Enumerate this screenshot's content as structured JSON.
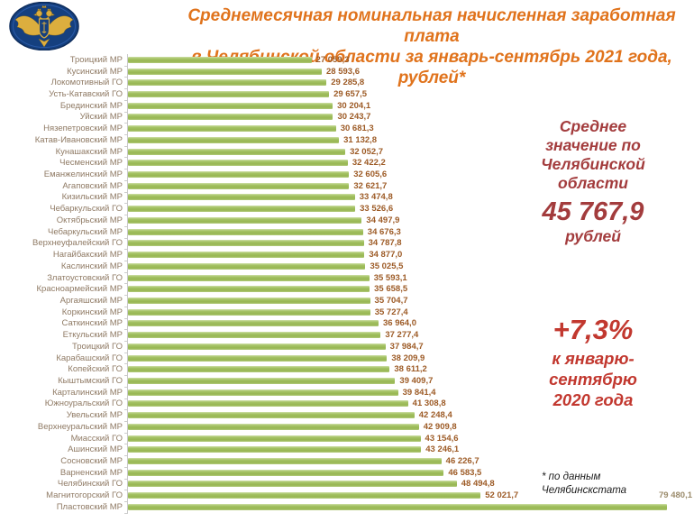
{
  "header": {
    "title_line1": "Среднемесячная номинальная начисленная заработная плата",
    "title_line2": "в Челябинской области за январь-сентябрь 2021 года, рублей*",
    "title_color": "#e0731c",
    "logo": "rosstat-emblem"
  },
  "chart_data": {
    "type": "bar",
    "orientation": "horizontal",
    "title": "Среднемесячная номинальная начисленная заработная плата в Челябинской области за январь-сентябрь 2021 года, рублей*",
    "unit": "рублей",
    "xlim": [
      0,
      83500
    ],
    "grid": false,
    "legend": "none",
    "bar_color": "#9fbe5c",
    "value_label_color": "#9d5b26",
    "category_label_color": "#8f7a64",
    "categories": [
      "Троицкий МР",
      "Кусинский МР",
      "Локомотивный ГО",
      "Усть-Катавский ГО",
      "Брединский МР",
      "Уйский МР",
      "Нязепетровский МР",
      "Катав-Ивановский МР",
      "Кунашакский МР",
      "Чесменский МР",
      "Еманжелинский МР",
      "Агаповский МР",
      "Кизильский МР",
      "Чебаркульский ГО",
      "Октябрьский МР",
      "Чебаркульский МР",
      "Верхнеуфалейский ГО",
      "Нагайбакский МР",
      "Каслинский МР",
      "Златоустовский ГО",
      "Красноармейский МР",
      "Аргаяшский МР",
      "Коркинский МР",
      "Саткинский МР",
      "Еткульский МР",
      "Троицкий ГО",
      "Карабашский ГО",
      "Копейский ГО",
      "Кыштымский ГО",
      "Карталинский МР",
      "Южноуральский ГО",
      "Увельский МР",
      "Верхнеуральский МР",
      "Миасский ГО",
      "Ашинский МР",
      "Сосновский МР",
      "Варненский МР",
      "Челябинский ГО",
      "Магнитогорский ГО",
      "Пластовский МР"
    ],
    "values": [
      27059.3,
      28593.6,
      29285.8,
      29657.5,
      30204.1,
      30243.7,
      30681.3,
      31132.8,
      32052.7,
      32422.2,
      32605.6,
      32621.7,
      33474.8,
      33526.6,
      34497.9,
      34676.3,
      34787.8,
      34877.0,
      35025.5,
      35593.1,
      35658.5,
      35704.7,
      35727.4,
      36964.0,
      37277.4,
      37984.7,
      38209.9,
      38611.2,
      39409.7,
      39841.4,
      41308.8,
      42248.4,
      42909.8,
      43154.6,
      43246.1,
      46226.7,
      46583.5,
      48494.8,
      52021.7,
      79480.1
    ]
  },
  "annotations": {
    "average": {
      "lines": [
        "Среднее",
        "значение по",
        "Челябинской",
        "области"
      ],
      "value": "45 767,9",
      "unit": "рублей",
      "color": "#a33c3d"
    },
    "growth": {
      "value": "+7,3%",
      "lines": [
        "к январю-",
        "сентябрю",
        "2020 года"
      ],
      "color": "#c2382f"
    },
    "footnote": {
      "line1": "* по данным",
      "line2": "Челябинскстата"
    }
  }
}
